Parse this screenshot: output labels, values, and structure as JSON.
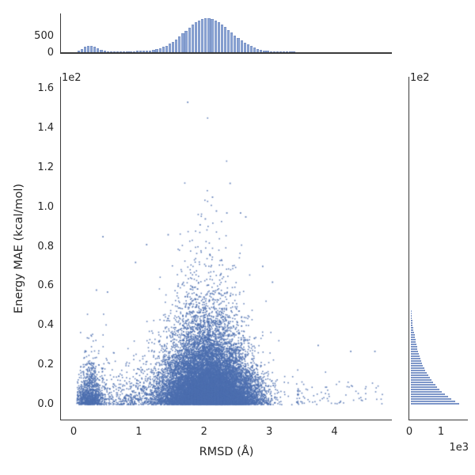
{
  "figure": {
    "kind": "jointplot",
    "background": "#ffffff",
    "text_color": "#262626",
    "spine_color": "#3a3a3a",
    "bar_fill": "#8CA5D5",
    "bar_edge": "#7189bd",
    "point_color_rgba": "rgba(76,110,175,0.85)"
  },
  "labels": {
    "xlabel": "RMSD (Å)",
    "ylabel": "Energy MAE (kcal/mol)",
    "main_y_offset": "1e2",
    "right_y_offset": "1e2",
    "right_count_offset": "1e3"
  },
  "ticks": {
    "main_x": {
      "values": [
        0,
        1,
        2,
        3,
        4
      ],
      "labels": [
        "0",
        "1",
        "2",
        "3",
        "4"
      ]
    },
    "main_y": {
      "values": [
        0,
        20,
        40,
        60,
        80,
        100,
        120,
        140,
        160
      ],
      "labels": [
        "0.0",
        "0.2",
        "0.4",
        "0.6",
        "0.8",
        "1.0",
        "1.2",
        "1.4",
        "1.6"
      ]
    },
    "top_count_y": {
      "values": [
        0,
        500
      ],
      "labels": [
        "0",
        "500"
      ]
    },
    "right_count_x": {
      "values": [
        0,
        1000
      ],
      "labels": [
        "0",
        "1"
      ]
    }
  },
  "chart_data": [
    {
      "type": "bar",
      "role": "top-marginal-histogram",
      "orientation": "vertical",
      "variable": "RMSD (Å)",
      "ylabel": "count",
      "yticks": [
        0,
        500
      ],
      "ylim": [
        0,
        1163
      ],
      "bin_start": 0.05,
      "bin_width": 0.05,
      "counts": [
        53,
        100,
        154,
        192,
        193,
        157,
        106,
        61,
        35,
        23,
        20,
        22,
        22,
        25,
        26,
        32,
        33,
        33,
        35,
        37,
        41,
        47,
        57,
        71,
        91,
        117,
        152,
        195,
        248,
        310,
        383,
        463,
        548,
        636,
        723,
        806,
        877,
        936,
        977,
        997,
        997,
        976,
        934,
        875,
        803,
        745,
        660,
        580,
        500,
        425,
        355,
        290,
        232,
        181,
        138,
        102,
        74,
        52,
        36,
        24,
        16,
        10,
        6,
        4,
        2,
        1,
        1
      ],
      "peak": {
        "x": 2.05,
        "count": 997
      },
      "secondary_bump": {
        "x": 0.25,
        "count": 193
      }
    },
    {
      "type": "scatter",
      "role": "main-joint-scatter",
      "xlabel": "RMSD (Å)",
      "ylabel": "Energy MAE (kcal/mol)",
      "xlim": [
        -0.194,
        4.88
      ],
      "ylim": [
        -7.9,
        165.9
      ],
      "x_ticks": [
        0,
        1,
        2,
        3,
        4
      ],
      "y_ticks": [
        0,
        20,
        40,
        60,
        80,
        100,
        120,
        140,
        160
      ],
      "y_axis_multiplier": "1e2",
      "n_points_approx": 19150,
      "marker_size_px": 1.6,
      "seed": 1234567,
      "x_distribution": "top_histogram_bins",
      "y_model": {
        "family": "exponential_scale_varying_with_x",
        "base_scale": 3.5,
        "peak_scale": 9.5,
        "peak_center": 1.95,
        "peak_width": 1.05,
        "left_bump_scale": 2.5,
        "left_bump_center": 0.3,
        "left_bump_width": 0.35,
        "cap_base": 15,
        "cap_amp": 160,
        "cap_center": 2.05,
        "cap_width": 1.45
      },
      "tail": {
        "n": 85,
        "x_min": 3.42,
        "x_span": 1.36,
        "y_scale": 6
      },
      "notable_points": [
        [
          1.75,
          153
        ],
        [
          2.4,
          112
        ],
        [
          2.13,
          105
        ],
        [
          2.19,
          98
        ],
        [
          2.35,
          97
        ],
        [
          2.56,
          97
        ],
        [
          2.64,
          95
        ],
        [
          2.02,
          94
        ],
        [
          1.94,
          91
        ],
        [
          1.45,
          86
        ],
        [
          1.12,
          81
        ],
        [
          0.45,
          85
        ],
        [
          0.95,
          72
        ],
        [
          2.9,
          70
        ],
        [
          3.05,
          62
        ],
        [
          0.35,
          58
        ],
        [
          0.52,
          57
        ],
        [
          3.75,
          30
        ],
        [
          4.25,
          27
        ],
        [
          4.62,
          27
        ]
      ]
    },
    {
      "type": "bar",
      "role": "right-marginal-histogram",
      "orientation": "horizontal",
      "variable": "Energy MAE (kcal/mol)",
      "xlabel": "count",
      "xticks": [
        0,
        1000
      ],
      "xlim": [
        0,
        1825
      ],
      "x_axis_multiplier": "1e3",
      "bin_start": 0,
      "bin_width": 1.2,
      "counts": [
        1525,
        1401,
        1287,
        1182,
        1086,
        997,
        916,
        841,
        773,
        710,
        652,
        599,
        550,
        505,
        464,
        426,
        391,
        360,
        330,
        303,
        279,
        256,
        235,
        216,
        198,
        182,
        167,
        154,
        141,
        130,
        110,
        97,
        84,
        72,
        60,
        49,
        39,
        30,
        22,
        15
      ]
    }
  ]
}
